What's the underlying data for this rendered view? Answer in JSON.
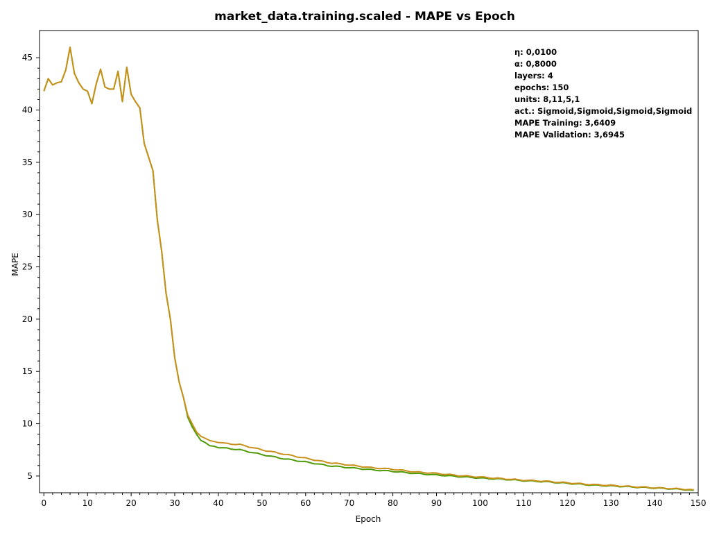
{
  "chart_data": {
    "type": "line",
    "title": "market_data.training.scaled - MAPE vs Epoch",
    "xlabel": "Epoch",
    "ylabel": "MAPE",
    "xlim": [
      -1,
      150
    ],
    "ylim": [
      3.4,
      47.6
    ],
    "xticks": [
      0,
      10,
      20,
      30,
      40,
      50,
      60,
      70,
      80,
      90,
      100,
      110,
      120,
      130,
      140,
      150
    ],
    "yticks": [
      5,
      10,
      15,
      20,
      25,
      30,
      35,
      40,
      45
    ],
    "grid": false,
    "legend": "none",
    "annotations": [
      "η: 0,0100",
      "α: 0,8000",
      "layers: 4",
      "epochs: 150",
      "units: 8,11,5,1",
      "act.: Sigmoid,Sigmoid,Sigmoid,Sigmoid",
      "MAPE Training: 3,6409",
      "MAPE Validation: 3,6945"
    ],
    "series": [
      {
        "color": "#4e9a06",
        "anchors": [
          [
            0,
            41.8
          ],
          [
            1,
            43.0
          ],
          [
            2,
            42.4
          ],
          [
            3,
            42.6
          ],
          [
            4,
            42.7
          ],
          [
            5,
            43.8
          ],
          [
            6,
            46.0
          ],
          [
            7,
            43.5
          ],
          [
            8,
            42.6
          ],
          [
            9,
            42.0
          ],
          [
            10,
            41.8
          ],
          [
            11,
            40.6
          ],
          [
            12,
            42.5
          ],
          [
            13,
            43.9
          ],
          [
            14,
            42.2
          ],
          [
            15,
            42.0
          ],
          [
            16,
            42.0
          ],
          [
            17,
            43.7
          ],
          [
            18,
            40.8
          ],
          [
            19,
            44.1
          ],
          [
            20,
            41.5
          ],
          [
            21,
            40.8
          ],
          [
            22,
            40.2
          ],
          [
            23,
            36.8
          ],
          [
            24,
            35.5
          ],
          [
            25,
            34.2
          ],
          [
            26,
            29.5
          ],
          [
            27,
            26.5
          ],
          [
            28,
            22.5
          ],
          [
            29,
            20.0
          ],
          [
            30,
            16.3
          ],
          [
            31,
            14.0
          ],
          [
            32,
            12.5
          ],
          [
            33,
            10.6
          ],
          [
            34,
            9.7
          ],
          [
            35,
            9.0
          ],
          [
            36,
            8.4
          ],
          [
            37,
            8.2
          ],
          [
            38,
            7.9
          ],
          [
            39,
            7.85
          ],
          [
            40,
            7.7
          ],
          [
            42,
            7.65
          ],
          [
            45,
            7.5
          ],
          [
            50,
            7.05
          ],
          [
            55,
            6.65
          ],
          [
            60,
            6.35
          ],
          [
            65,
            6.0
          ],
          [
            70,
            5.8
          ],
          [
            75,
            5.6
          ],
          [
            80,
            5.45
          ],
          [
            85,
            5.25
          ],
          [
            90,
            5.1
          ],
          [
            95,
            4.95
          ],
          [
            100,
            4.8
          ],
          [
            105,
            4.7
          ],
          [
            110,
            4.55
          ],
          [
            115,
            4.45
          ],
          [
            120,
            4.3
          ],
          [
            125,
            4.15
          ],
          [
            130,
            4.05
          ],
          [
            135,
            3.95
          ],
          [
            140,
            3.85
          ],
          [
            145,
            3.75
          ],
          [
            149,
            3.64
          ]
        ]
      },
      {
        "color": "#c8901a",
        "anchors": [
          [
            0,
            41.8
          ],
          [
            1,
            43.0
          ],
          [
            2,
            42.4
          ],
          [
            3,
            42.6
          ],
          [
            4,
            42.7
          ],
          [
            5,
            43.8
          ],
          [
            6,
            46.0
          ],
          [
            7,
            43.5
          ],
          [
            8,
            42.6
          ],
          [
            9,
            42.0
          ],
          [
            10,
            41.8
          ],
          [
            11,
            40.6
          ],
          [
            12,
            42.5
          ],
          [
            13,
            43.9
          ],
          [
            14,
            42.2
          ],
          [
            15,
            42.0
          ],
          [
            16,
            42.0
          ],
          [
            17,
            43.7
          ],
          [
            18,
            40.8
          ],
          [
            19,
            44.1
          ],
          [
            20,
            41.5
          ],
          [
            21,
            40.8
          ],
          [
            22,
            40.2
          ],
          [
            23,
            36.8
          ],
          [
            24,
            35.5
          ],
          [
            25,
            34.2
          ],
          [
            26,
            29.5
          ],
          [
            27,
            26.5
          ],
          [
            28,
            22.5
          ],
          [
            29,
            20.0
          ],
          [
            30,
            16.3
          ],
          [
            31,
            14.0
          ],
          [
            32,
            12.5
          ],
          [
            33,
            10.8
          ],
          [
            34,
            10.0
          ],
          [
            35,
            9.2
          ],
          [
            36,
            8.8
          ],
          [
            37,
            8.6
          ],
          [
            38,
            8.4
          ],
          [
            39,
            8.3
          ],
          [
            40,
            8.2
          ],
          [
            42,
            8.1
          ],
          [
            45,
            8.0
          ],
          [
            50,
            7.5
          ],
          [
            55,
            7.1
          ],
          [
            60,
            6.7
          ],
          [
            65,
            6.3
          ],
          [
            70,
            6.05
          ],
          [
            75,
            5.8
          ],
          [
            80,
            5.65
          ],
          [
            85,
            5.4
          ],
          [
            90,
            5.25
          ],
          [
            95,
            5.05
          ],
          [
            100,
            4.9
          ],
          [
            105,
            4.75
          ],
          [
            110,
            4.6
          ],
          [
            115,
            4.5
          ],
          [
            120,
            4.35
          ],
          [
            125,
            4.2
          ],
          [
            130,
            4.1
          ],
          [
            135,
            3.98
          ],
          [
            140,
            3.88
          ],
          [
            145,
            3.78
          ],
          [
            149,
            3.69
          ]
        ]
      }
    ]
  }
}
